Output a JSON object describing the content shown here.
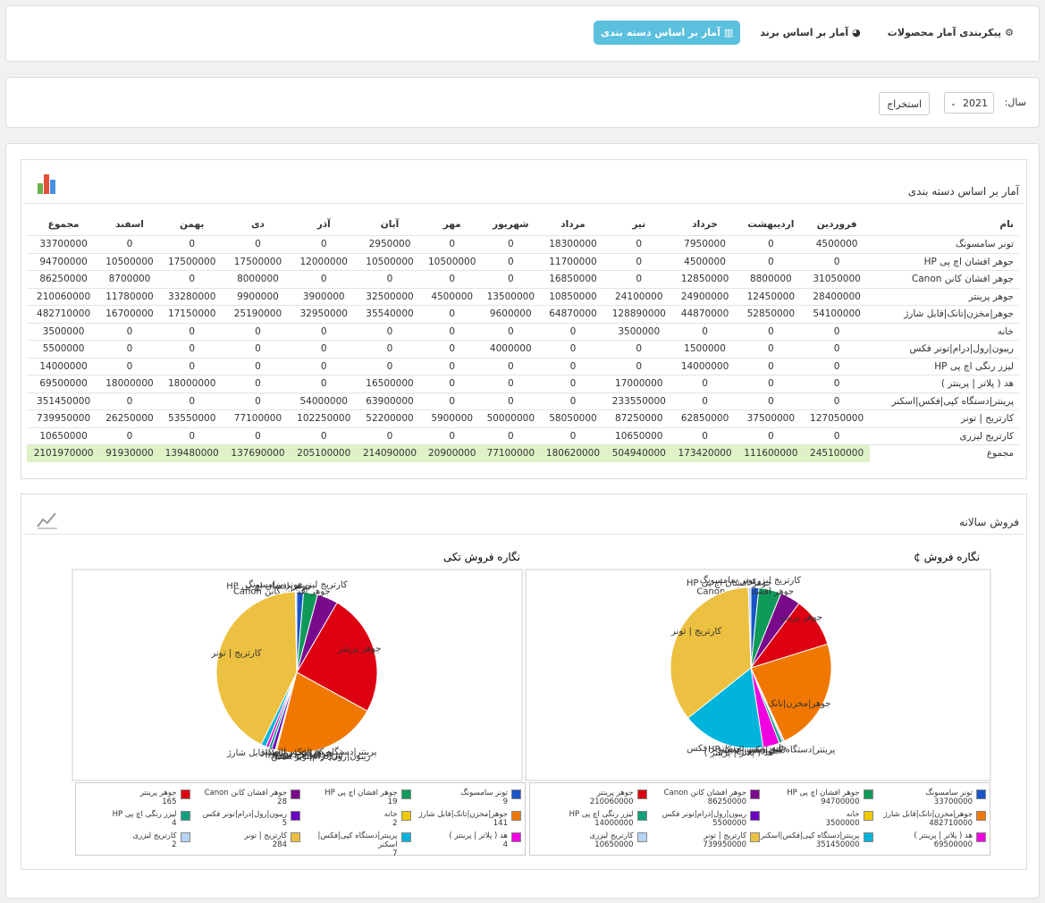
{
  "nav": {
    "tabs": [
      "پیکربندی آمار محصولات",
      "آمار بر اساس برند",
      "آمار بر اساس دسته بندی"
    ]
  },
  "filter": {
    "label": "سال:",
    "year": "2021",
    "button": "استخراج"
  },
  "table": {
    "title": "آمار بر اساس دسته بندی",
    "header": [
      "نام",
      "فروردین",
      "اردیبهشت",
      "خرداد",
      "تیر",
      "مرداد",
      "شهریور",
      "مهر",
      "آبان",
      "آذر",
      "دی",
      "بهمن",
      "اسفند",
      "مجموع"
    ],
    "rows": [
      [
        "تونر سامسونگ",
        4500000,
        0,
        7950000,
        0,
        18300000,
        0,
        0,
        2950000,
        0,
        0,
        0,
        0,
        33700000
      ],
      [
        "جوهر افشان اچ پی HP",
        0,
        0,
        4500000,
        0,
        11700000,
        0,
        10500000,
        10500000,
        12000000,
        17500000,
        17500000,
        10500000,
        94700000
      ],
      [
        "جوهر افشان کانن Canon",
        31050000,
        8800000,
        12850000,
        0,
        16850000,
        0,
        0,
        0,
        0,
        8000000,
        0,
        8700000,
        86250000
      ],
      [
        "جوهر پرینتر",
        28400000,
        12450000,
        24900000,
        24100000,
        10850000,
        13500000,
        4500000,
        32500000,
        3900000,
        9900000,
        33280000,
        11780000,
        210060000
      ],
      [
        "جوهر|مخزن|تانک|قابل شارژ",
        54100000,
        52850000,
        44870000,
        128890000,
        64870000,
        9600000,
        0,
        35540000,
        32950000,
        25190000,
        17150000,
        16700000,
        482710000
      ],
      [
        "خانه",
        0,
        0,
        0,
        3500000,
        0,
        0,
        0,
        0,
        0,
        0,
        0,
        0,
        3500000
      ],
      [
        "ریبون|رول|درام|تونر فکس",
        0,
        0,
        1500000,
        0,
        0,
        4000000,
        0,
        0,
        0,
        0,
        0,
        0,
        5500000
      ],
      [
        "لیزر رنگی اچ پی HP",
        0,
        0,
        14000000,
        0,
        0,
        0,
        0,
        0,
        0,
        0,
        0,
        0,
        14000000
      ],
      [
        "هد ( پلاتر | پرینتر )",
        0,
        0,
        0,
        17000000,
        0,
        0,
        0,
        16500000,
        0,
        0,
        18000000,
        18000000,
        69500000
      ],
      [
        "پرینتر|دستگاه کپی|فکس|اسکنر",
        0,
        0,
        0,
        233550000,
        0,
        0,
        0,
        63900000,
        54000000,
        0,
        0,
        0,
        351450000
      ],
      [
        "کارتریج | تونر",
        127050000,
        37500000,
        62850000,
        87250000,
        58050000,
        50000000,
        5900000,
        52200000,
        102250000,
        77100000,
        53550000,
        26250000,
        739950000
      ],
      [
        "کارتریج لیزری",
        0,
        0,
        0,
        10650000,
        0,
        0,
        0,
        0,
        0,
        0,
        0,
        0,
        10650000
      ]
    ],
    "total": [
      "مجموع",
      245100000,
      111600000,
      173420000,
      504940000,
      180620000,
      77100000,
      20900000,
      214090000,
      205100000,
      137690000,
      139480000,
      91930000,
      2101970000
    ]
  },
  "section_title": "فروش سالانه",
  "chart_data": [
    {
      "type": "pie",
      "title": "نگاره فروش ¢",
      "categories": [
        "تونر سامسونگ",
        "جوهر افشان اچ پی HP",
        "جوهر افشان کانن Canon",
        "جوهر پرینتر",
        "جوهر|مخزن|تانک|قابل شارژ",
        "خانه",
        "ریبون|رول|درام|تونر فکس",
        "لیزر رنگی اچ پی HP",
        "هد ( پلاتر | پرینتر )",
        "پرینتر|دستگاه کپی|فکس|اسکنر",
        "کارتریج | تونر",
        "کارتریج لیزری"
      ],
      "values": [
        33700000,
        94700000,
        86250000,
        210060000,
        482710000,
        3500000,
        5500000,
        14000000,
        69500000,
        351450000,
        739950000,
        10650000
      ],
      "colors": [
        "#1a55c8",
        "#109a5a",
        "#7a0a8c",
        "#dc0010",
        "#f07800",
        "#f0c800",
        "#6a00c0",
        "#10a080",
        "#f000e0",
        "#00b4dc",
        "#ecc040",
        "#b4d4f4"
      ]
    },
    {
      "type": "pie",
      "title": "نگاره فروش تکی",
      "categories": [
        "تونر سامسونگ",
        "جوهر افشان اچ پی HP",
        "جوهر افشان کانن Canon",
        "جوهر پرینتر",
        "جوهر|مخزن|تانک|قابل شارژ",
        "خانه",
        "ریبون|رول|درام|تونر فکس",
        "لیزر رنگی اچ پی HP",
        "هد ( پلاتر | پرینتر )",
        "پرینتر|دستگاه کپی|فکس|اسکنر",
        "کارتریج | تونر",
        "کارتریج لیزری"
      ],
      "values": [
        9,
        19,
        28,
        165,
        141,
        2,
        5,
        4,
        4,
        7,
        284,
        2
      ],
      "colors": [
        "#1a55c8",
        "#109a5a",
        "#7a0a8c",
        "#dc0010",
        "#f07800",
        "#f0c800",
        "#6a00c0",
        "#10a080",
        "#f000e0",
        "#00b4dc",
        "#ecc040",
        "#b4d4f4"
      ]
    }
  ]
}
